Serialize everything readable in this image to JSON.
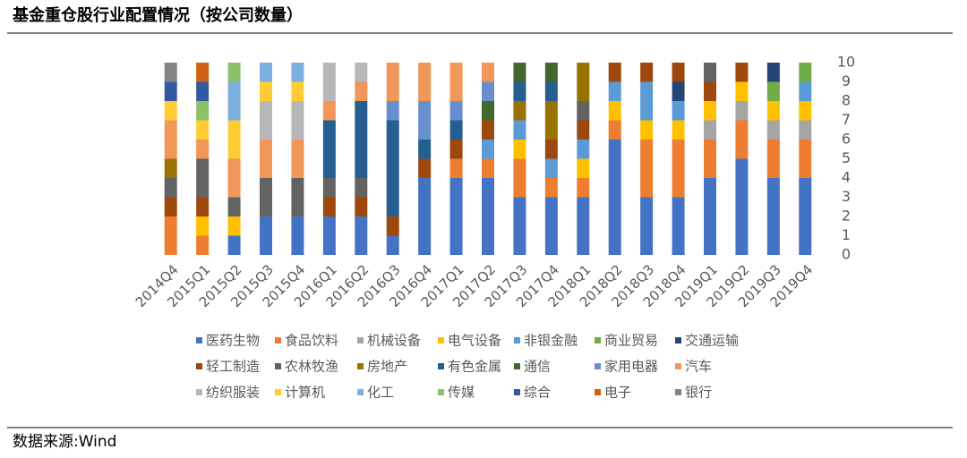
{
  "chart_data": {
    "type": "stacked-bar",
    "title": "基金重仓股行业配置情况（按公司数量）",
    "categories": [
      "2014Q4",
      "2015Q1",
      "2015Q2",
      "2015Q3",
      "2015Q4",
      "2016Q1",
      "2016Q2",
      "2016Q3",
      "2016Q4",
      "2017Q1",
      "2017Q2",
      "2017Q3",
      "2017Q4",
      "2018Q1",
      "2018Q2",
      "2018Q3",
      "2018Q4",
      "2019Q1",
      "2019Q2",
      "2019Q3",
      "2019Q4"
    ],
    "ylim": [
      0,
      10
    ],
    "yticks": [
      0,
      1,
      2,
      3,
      4,
      5,
      6,
      7,
      8,
      9,
      10
    ],
    "y_axis_side": "right",
    "series": [
      {
        "name": "医药生物",
        "color": "#4472c4",
        "values": [
          0,
          0,
          1,
          2,
          2,
          2,
          2,
          1,
          4,
          4,
          4,
          3,
          3,
          3,
          6,
          3,
          3,
          4,
          5,
          4,
          4
        ]
      },
      {
        "name": "食品饮料",
        "color": "#ed7d31",
        "values": [
          2,
          1,
          0,
          0,
          0,
          0,
          0,
          0,
          0,
          1,
          1,
          2,
          1,
          1,
          1,
          3,
          3,
          2,
          2,
          2,
          2
        ]
      },
      {
        "name": "机械设备",
        "color": "#a5a5a5",
        "values": [
          0,
          0,
          0,
          0,
          0,
          0,
          0,
          0,
          0,
          0,
          0,
          0,
          0,
          0,
          0,
          0,
          0,
          1,
          1,
          1,
          1
        ]
      },
      {
        "name": "电气设备",
        "color": "#ffc000",
        "values": [
          0,
          1,
          1,
          0,
          0,
          0,
          0,
          0,
          0,
          0,
          0,
          1,
          0,
          1,
          1,
          1,
          1,
          1,
          1,
          1,
          1
        ]
      },
      {
        "name": "非银金融",
        "color": "#5b9bd5",
        "values": [
          0,
          0,
          0,
          0,
          0,
          0,
          0,
          0,
          0,
          0,
          1,
          1,
          1,
          1,
          1,
          2,
          1,
          0,
          0,
          0,
          1
        ]
      },
      {
        "name": "商业贸易",
        "color": "#70ad47",
        "values": [
          0,
          0,
          0,
          0,
          0,
          0,
          0,
          0,
          0,
          0,
          0,
          0,
          0,
          0,
          0,
          0,
          0,
          0,
          0,
          1,
          1
        ]
      },
      {
        "name": "交通运输",
        "color": "#264478",
        "values": [
          0,
          0,
          0,
          0,
          0,
          0,
          0,
          0,
          0,
          0,
          0,
          0,
          0,
          0,
          0,
          0,
          1,
          0,
          0,
          1,
          0
        ]
      },
      {
        "name": "轻工制造",
        "color": "#9e480e",
        "values": [
          1,
          1,
          0,
          0,
          0,
          1,
          1,
          1,
          1,
          1,
          1,
          0,
          1,
          1,
          1,
          1,
          1,
          1,
          1,
          0,
          0
        ]
      },
      {
        "name": "农林牧渔",
        "color": "#636363",
        "values": [
          1,
          2,
          1,
          2,
          2,
          1,
          1,
          0,
          0,
          0,
          0,
          0,
          0,
          1,
          0,
          0,
          0,
          1,
          0,
          0,
          0
        ]
      },
      {
        "name": "房地产",
        "color": "#997300",
        "values": [
          1,
          0,
          0,
          0,
          0,
          0,
          0,
          0,
          0,
          0,
          0,
          1,
          2,
          2,
          0,
          0,
          0,
          0,
          0,
          0,
          0
        ]
      },
      {
        "name": "有色金属",
        "color": "#255e91",
        "values": [
          0,
          0,
          0,
          0,
          0,
          3,
          4,
          5,
          1,
          1,
          0,
          1,
          1,
          0,
          0,
          0,
          0,
          0,
          0,
          0,
          0
        ]
      },
      {
        "name": "通信",
        "color": "#43682b",
        "values": [
          0,
          0,
          0,
          0,
          0,
          0,
          0,
          0,
          0,
          0,
          1,
          1,
          1,
          0,
          0,
          0,
          0,
          0,
          0,
          0,
          0
        ]
      },
      {
        "name": "家用电器",
        "color": "#698ed0",
        "values": [
          0,
          0,
          0,
          0,
          0,
          0,
          0,
          1,
          2,
          1,
          1,
          0,
          0,
          0,
          0,
          0,
          0,
          0,
          0,
          0,
          0
        ]
      },
      {
        "name": "汽车",
        "color": "#f1975a",
        "values": [
          2,
          1,
          2,
          2,
          2,
          1,
          1,
          2,
          2,
          2,
          1,
          0,
          0,
          0,
          0,
          0,
          0,
          0,
          0,
          0,
          0
        ]
      },
      {
        "name": "纺织服装",
        "color": "#b7b7b7",
        "values": [
          0,
          0,
          0,
          2,
          2,
          2,
          1,
          0,
          0,
          0,
          0,
          0,
          0,
          0,
          0,
          0,
          0,
          0,
          0,
          0,
          0
        ]
      },
      {
        "name": "计算机",
        "color": "#ffcd33",
        "values": [
          1,
          1,
          2,
          1,
          1,
          0,
          0,
          0,
          0,
          0,
          0,
          0,
          0,
          0,
          0,
          0,
          0,
          0,
          0,
          0,
          0
        ]
      },
      {
        "name": "化工",
        "color": "#7cafdd",
        "values": [
          0,
          0,
          2,
          1,
          1,
          0,
          0,
          0,
          0,
          0,
          0,
          0,
          0,
          0,
          0,
          0,
          0,
          0,
          0,
          0,
          0
        ]
      },
      {
        "name": "传媒",
        "color": "#8cc168",
        "values": [
          0,
          1,
          1,
          0,
          0,
          0,
          0,
          0,
          0,
          0,
          0,
          0,
          0,
          0,
          0,
          0,
          0,
          0,
          0,
          0,
          0
        ]
      },
      {
        "name": "综合",
        "color": "#335aa1",
        "values": [
          1,
          1,
          0,
          0,
          0,
          0,
          0,
          0,
          0,
          0,
          0,
          0,
          0,
          0,
          0,
          0,
          0,
          0,
          0,
          0,
          0
        ]
      },
      {
        "name": "电子",
        "color": "#d26012",
        "values": [
          0,
          1,
          0,
          0,
          0,
          0,
          0,
          0,
          0,
          0,
          0,
          0,
          0,
          0,
          0,
          0,
          0,
          0,
          0,
          0,
          0
        ]
      },
      {
        "name": "银行",
        "color": "#848484",
        "values": [
          1,
          0,
          0,
          0,
          0,
          0,
          0,
          0,
          0,
          0,
          0,
          0,
          0,
          0,
          0,
          0,
          0,
          0,
          0,
          0,
          0
        ]
      }
    ]
  },
  "source": "数据来源:Wind"
}
